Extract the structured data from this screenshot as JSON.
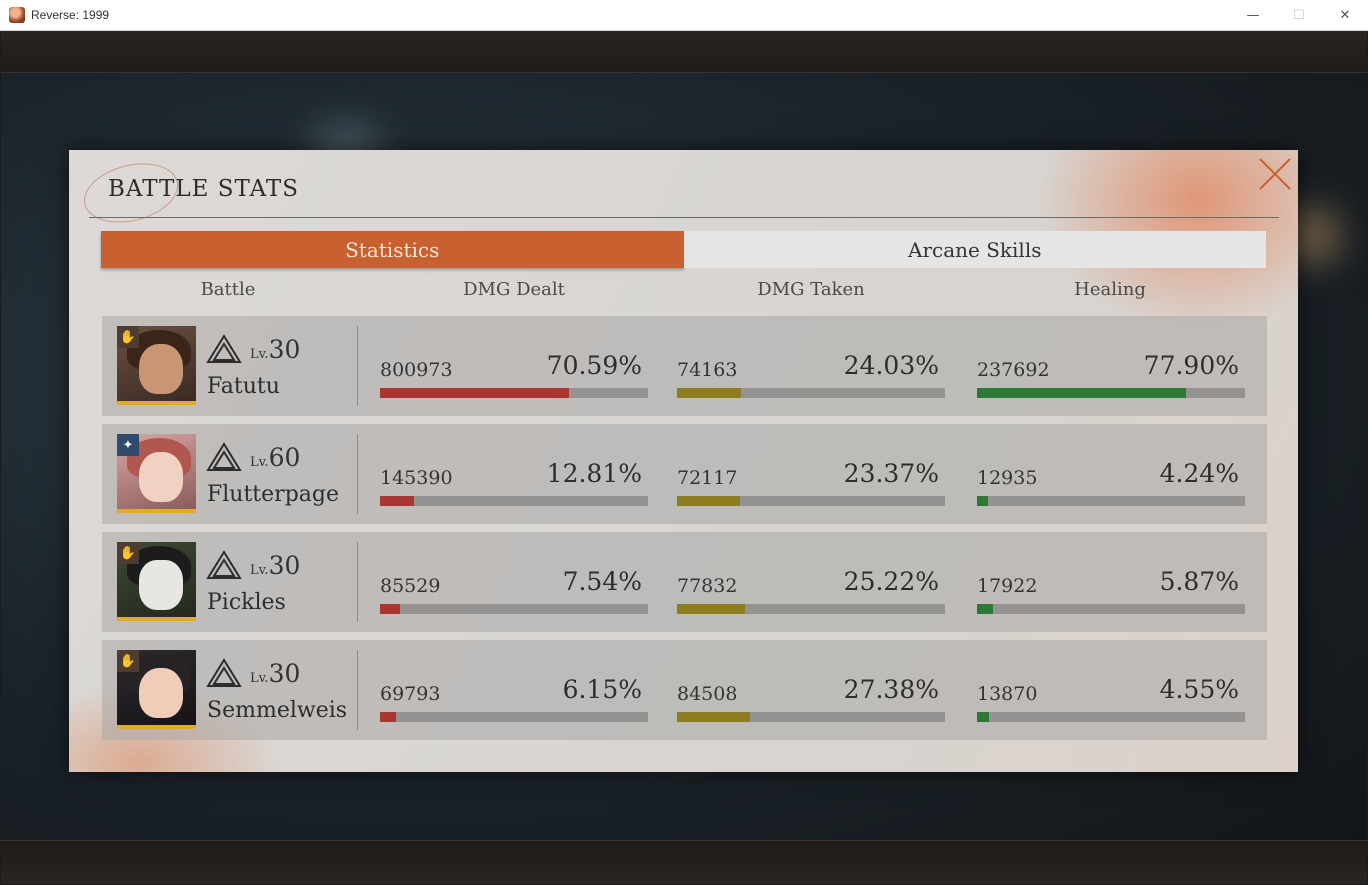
{
  "window": {
    "title": "Reverse: 1999",
    "minimize": "—",
    "maximize": "☐",
    "close": "✕"
  },
  "panel": {
    "title": "BATTLE STATS",
    "tabs": [
      {
        "label": "Statistics",
        "active": true
      },
      {
        "label": "Arcane Skills",
        "active": false
      }
    ],
    "columns": {
      "battle": "Battle",
      "dmg_dealt": "DMG Dealt",
      "dmg_taken": "DMG Taken",
      "healing": "Healing"
    },
    "level_prefix": "Lv.",
    "characters": [
      {
        "name": "Fatutu",
        "level": "30",
        "badge_icon": "hand-icon",
        "dmg_dealt": {
          "value": "800973",
          "percent": "70.59%",
          "fraction": 0.7059
        },
        "dmg_taken": {
          "value": "74163",
          "percent": "24.03%",
          "fraction": 0.2403
        },
        "healing": {
          "value": "237692",
          "percent": "77.90%",
          "fraction": 0.779
        }
      },
      {
        "name": "Flutterpage",
        "level": "60",
        "badge_icon": "star-icon",
        "dmg_dealt": {
          "value": "145390",
          "percent": "12.81%",
          "fraction": 0.1281
        },
        "dmg_taken": {
          "value": "72117",
          "percent": "23.37%",
          "fraction": 0.2337
        },
        "healing": {
          "value": "12935",
          "percent": "4.24%",
          "fraction": 0.0424
        }
      },
      {
        "name": "Pickles",
        "level": "30",
        "badge_icon": "hand-icon",
        "dmg_dealt": {
          "value": "85529",
          "percent": "7.54%",
          "fraction": 0.0754
        },
        "dmg_taken": {
          "value": "77832",
          "percent": "25.22%",
          "fraction": 0.2522
        },
        "healing": {
          "value": "17922",
          "percent": "5.87%",
          "fraction": 0.0587
        }
      },
      {
        "name": "Semmelweis",
        "level": "30",
        "badge_icon": "hand-icon",
        "dmg_dealt": {
          "value": "69793",
          "percent": "6.15%",
          "fraction": 0.0615
        },
        "dmg_taken": {
          "value": "84508",
          "percent": "27.38%",
          "fraction": 0.2738
        },
        "healing": {
          "value": "13870",
          "percent": "4.55%",
          "fraction": 0.0455
        }
      }
    ]
  },
  "colors": {
    "accent": "#c8602f",
    "dmg_dealt_bar": "#a93631",
    "dmg_taken_bar": "#8d7d20",
    "healing_bar": "#2e7a34"
  }
}
